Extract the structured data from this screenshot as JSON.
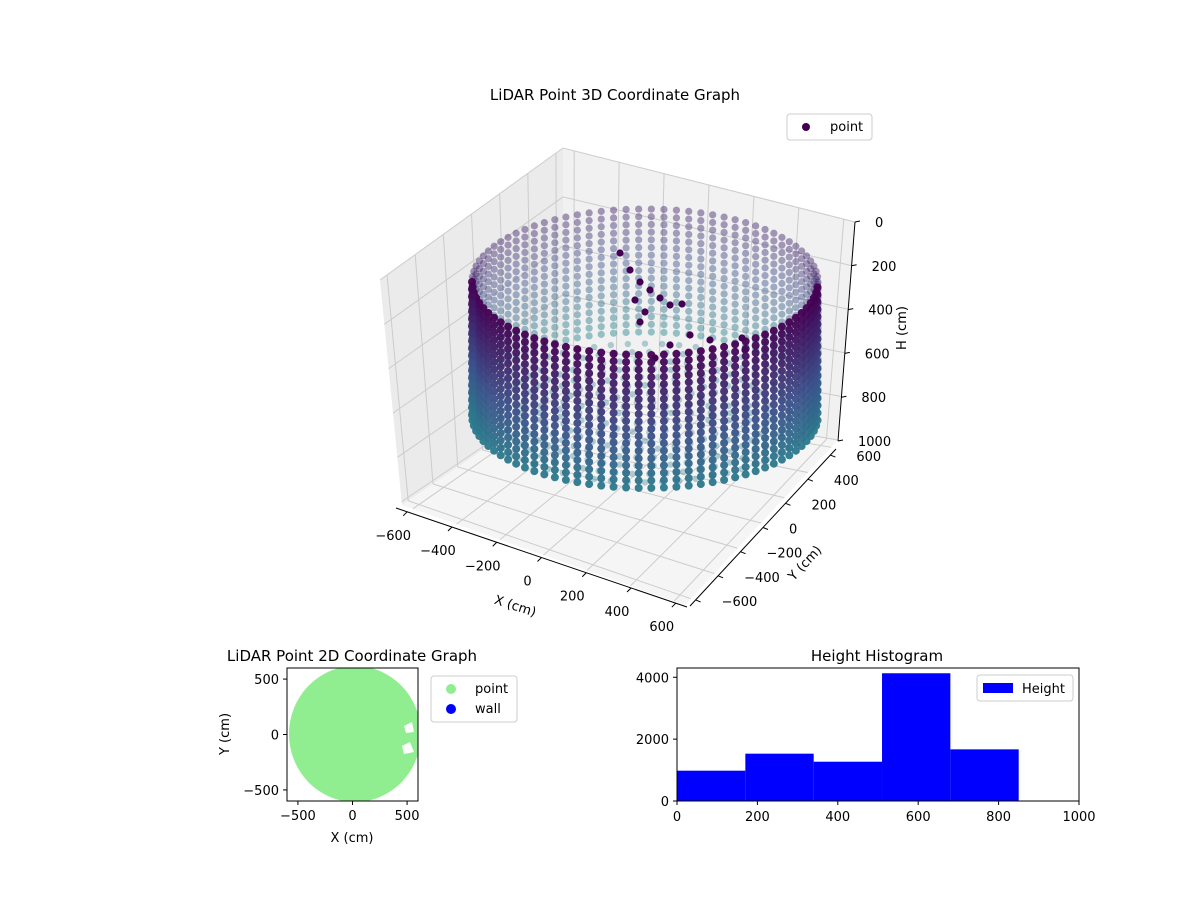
{
  "chart_data": [
    {
      "type": "scatter3d",
      "title": "LiDAR Point 3D Coordinate Graph",
      "xlabel": "X (cm)",
      "ylabel": "Y (cm)",
      "zlabel": "H (cm)",
      "xlim": [
        -650,
        650
      ],
      "ylim": [
        -650,
        650
      ],
      "zlim": [
        1000,
        0
      ],
      "xticks": [
        "−600",
        "−400",
        "−200",
        "0",
        "200",
        "400",
        "600"
      ],
      "yticks": [
        "−600",
        "−400",
        "−200",
        "0",
        "200",
        "400",
        "600"
      ],
      "zticks": [
        "0",
        "200",
        "400",
        "600",
        "800",
        "1000"
      ],
      "legend": {
        "labels": [
          "point"
        ],
        "position": "top-right"
      },
      "grid": true,
      "shape": "cylinder",
      "radius": 600,
      "height_range": [
        0,
        850
      ],
      "colormap": [
        "#440154",
        "#3b528b",
        "#21918c"
      ],
      "series_color": "#440154"
    },
    {
      "type": "scatter",
      "title": "LiDAR Point 2D Coordinate Graph",
      "xlabel": "X (cm)",
      "ylabel": "Y (cm)",
      "xlim": [
        -600,
        600
      ],
      "ylim": [
        -600,
        600
      ],
      "xticks": [
        "−500",
        "0",
        "500"
      ],
      "yticks": [
        "−500",
        "0",
        "500"
      ],
      "legend": {
        "labels": [
          "point",
          "wall"
        ],
        "position": "outside-right"
      },
      "series": [
        {
          "name": "point",
          "color": "#90ee90",
          "shape": "disc",
          "radius": 600
        },
        {
          "name": "wall",
          "color": "#0000ff"
        }
      ]
    },
    {
      "type": "bar",
      "title": "Height Histogram",
      "xlabel": "",
      "ylabel": "",
      "xlim": [
        0,
        1000
      ],
      "ylim": [
        0,
        4300
      ],
      "xticks": [
        "0",
        "200",
        "400",
        "600",
        "800",
        "1000"
      ],
      "yticks": [
        "0",
        "2000",
        "4000"
      ],
      "legend": {
        "labels": [
          "Height"
        ],
        "position": "top-right"
      },
      "color": "#0000ff",
      "bins": [
        {
          "x0": 0,
          "x1": 170,
          "count": 980
        },
        {
          "x0": 170,
          "x1": 340,
          "count": 1530
        },
        {
          "x0": 340,
          "x1": 510,
          "count": 1270
        },
        {
          "x0": 510,
          "x1": 680,
          "count": 4130
        },
        {
          "x0": 680,
          "x1": 850,
          "count": 1670
        }
      ]
    }
  ]
}
